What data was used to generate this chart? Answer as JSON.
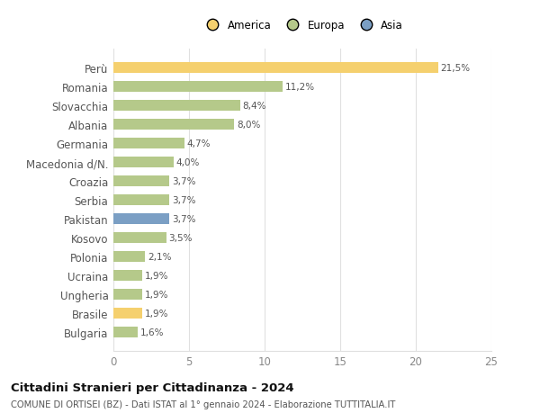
{
  "categories": [
    "Bulgaria",
    "Brasile",
    "Ungheria",
    "Ucraina",
    "Polonia",
    "Kosovo",
    "Pakistan",
    "Serbia",
    "Croazia",
    "Macedonia d/N.",
    "Germania",
    "Albania",
    "Slovacchia",
    "Romania",
    "Perù"
  ],
  "values": [
    1.6,
    1.9,
    1.9,
    1.9,
    2.1,
    3.5,
    3.7,
    3.7,
    3.7,
    4.0,
    4.7,
    8.0,
    8.4,
    11.2,
    21.5
  ],
  "labels": [
    "1,6%",
    "1,9%",
    "1,9%",
    "1,9%",
    "2,1%",
    "3,5%",
    "3,7%",
    "3,7%",
    "3,7%",
    "4,0%",
    "4,7%",
    "8,0%",
    "8,4%",
    "11,2%",
    "21,5%"
  ],
  "colors": [
    "#b5c98a",
    "#f5d06e",
    "#b5c98a",
    "#b5c98a",
    "#b5c98a",
    "#b5c98a",
    "#7b9fc4",
    "#b5c98a",
    "#b5c98a",
    "#b5c98a",
    "#b5c98a",
    "#b5c98a",
    "#b5c98a",
    "#b5c98a",
    "#f5d06e"
  ],
  "legend_colors": {
    "America": "#f5d06e",
    "Europa": "#b5c98a",
    "Asia": "#7b9fc4"
  },
  "title": "Cittadini Stranieri per Cittadinanza - 2024",
  "subtitle": "COMUNE DI ORTISEI (BZ) - Dati ISTAT al 1° gennaio 2024 - Elaborazione TUTTITALIA.IT",
  "xlim": [
    0,
    25
  ],
  "xticks": [
    0,
    5,
    10,
    15,
    20,
    25
  ],
  "background_color": "#ffffff",
  "bar_height": 0.55,
  "grid_color": "#e0e0e0",
  "label_color": "#555555",
  "tick_color": "#888888"
}
